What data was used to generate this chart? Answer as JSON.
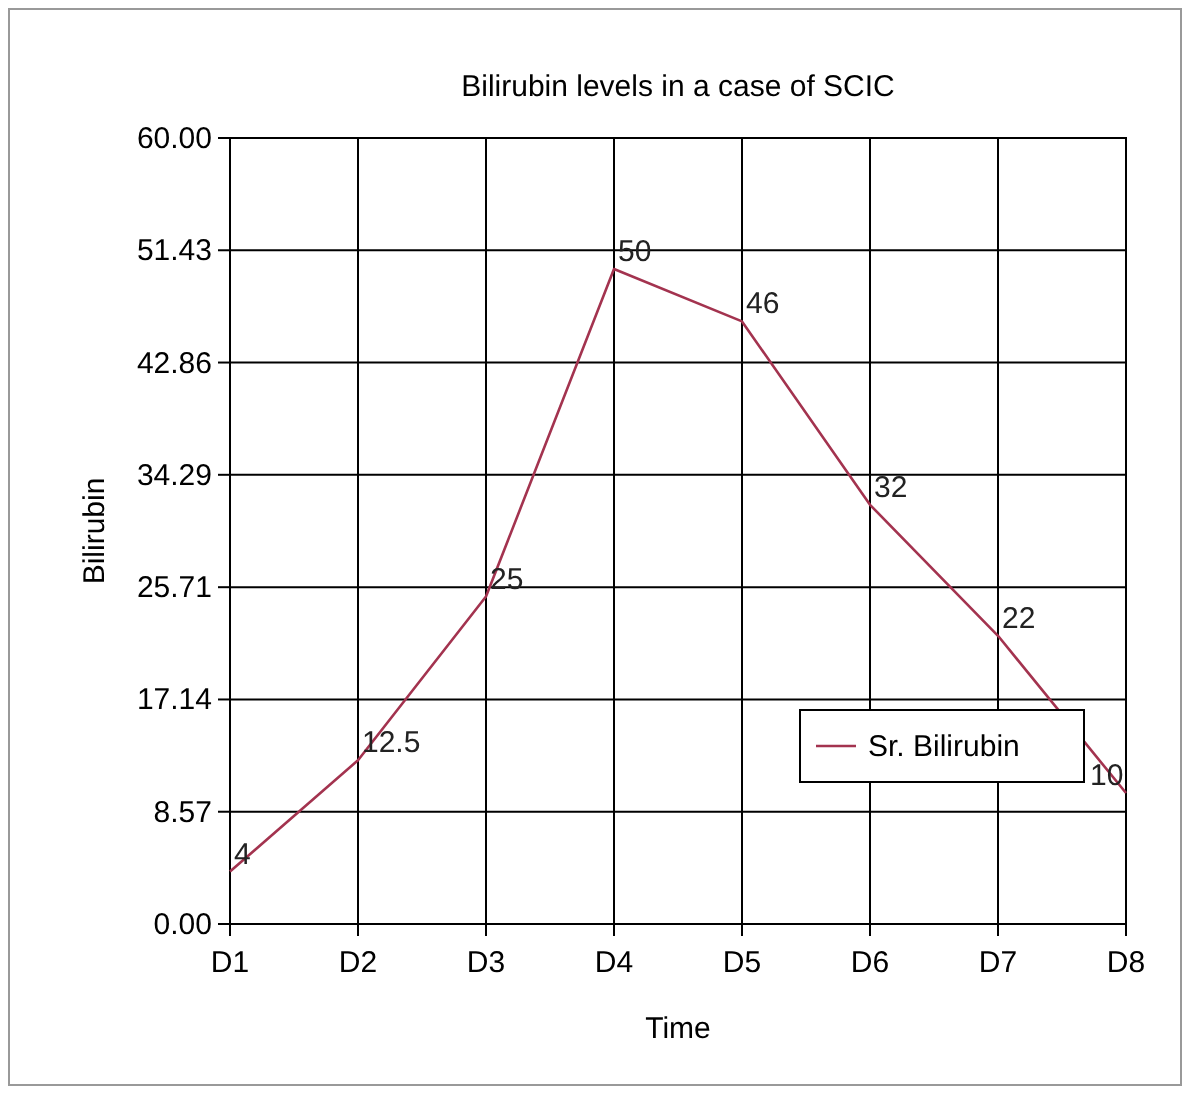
{
  "chart_data": {
    "type": "line",
    "title": "Bilirubin levels in a case of SCIC",
    "xlabel": "Time",
    "ylabel": "Bilirubin",
    "categories": [
      "D1",
      "D2",
      "D3",
      "D4",
      "D5",
      "D6",
      "D7",
      "D8"
    ],
    "series": [
      {
        "name": "Sr. Bilirubin",
        "color": "#a3334f",
        "values": [
          4,
          12.5,
          25,
          50,
          46,
          32,
          22,
          10
        ]
      }
    ],
    "ylim": [
      0,
      60
    ],
    "yticks": [
      {
        "value": 0,
        "label": "0.00"
      },
      {
        "value": 8.57,
        "label": "8.57"
      },
      {
        "value": 17.14,
        "label": "17.14"
      },
      {
        "value": 25.71,
        "label": "25.71"
      },
      {
        "value": 34.29,
        "label": "34.29"
      },
      {
        "value": 42.86,
        "label": "42.86"
      },
      {
        "value": 51.43,
        "label": "51.43"
      },
      {
        "value": 60,
        "label": "60.00"
      }
    ],
    "grid": true,
    "legend": "bottom right",
    "data_labels": true,
    "marker": "none",
    "line_style": "solid"
  }
}
